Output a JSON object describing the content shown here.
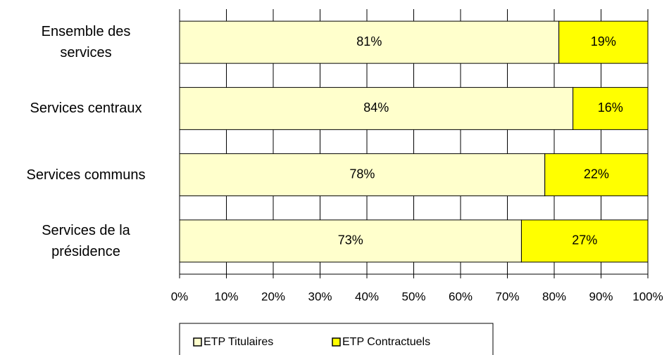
{
  "chart_data": {
    "type": "stacked_barh",
    "categories": [
      "Ensemble des\nservices",
      "Services centraux",
      "Services communs",
      "Services de la\nprésidence"
    ],
    "series": [
      {
        "name": "ETP Titulaires",
        "color": "#ffffcc",
        "values": [
          81,
          84,
          78,
          73
        ],
        "value_labels": [
          "81%",
          "84%",
          "78%",
          "73%"
        ]
      },
      {
        "name": "ETP Contractuels",
        "color": "#ffff00",
        "values": [
          19,
          16,
          22,
          27
        ],
        "value_labels": [
          "19%",
          "16%",
          "22%",
          "27%"
        ]
      }
    ],
    "xlim": [
      0,
      100
    ],
    "xticks": [
      {
        "value": 0,
        "label": "0%"
      },
      {
        "value": 10,
        "label": "10%"
      },
      {
        "value": 20,
        "label": "20%"
      },
      {
        "value": 30,
        "label": "30%"
      },
      {
        "value": 40,
        "label": "40%"
      },
      {
        "value": 50,
        "label": "50%"
      },
      {
        "value": 60,
        "label": "60%"
      },
      {
        "value": 70,
        "label": "70%"
      },
      {
        "value": 80,
        "label": "80%"
      },
      {
        "value": 90,
        "label": "90%"
      },
      {
        "value": 100,
        "label": "100%"
      }
    ],
    "grid": true,
    "legend": "bottom"
  }
}
